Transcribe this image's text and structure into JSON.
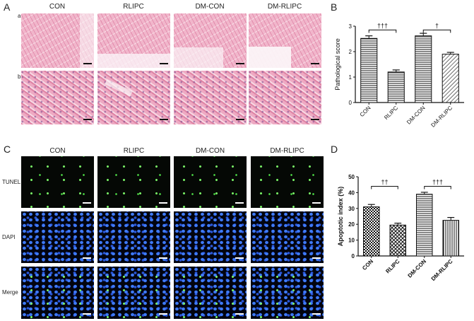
{
  "panels": {
    "a_letter": "A",
    "b_letter": "B",
    "c_letter": "C",
    "d_letter": "D",
    "he_row_a": "a",
    "he_row_b": "b",
    "he_columns": [
      "CON",
      "RLIPC",
      "DM-CON",
      "DM-RLIPC"
    ],
    "fl_columns": [
      "CON",
      "RLIPC",
      "DM-CON",
      "DM-RLIPC"
    ],
    "fl_rows": [
      "TUNEL",
      "DAPI",
      "Merge"
    ]
  },
  "colors": {
    "bar_stroke": "#111111",
    "he_pink": "#f1b6cb",
    "tunel_green": "#52e84a",
    "dapi_blue": "#3f7bff"
  },
  "chart_data": [
    {
      "id": "B",
      "type": "bar",
      "categories": [
        "CON",
        "RLIPC",
        "DM-CON",
        "DM-RLIPC"
      ],
      "values": [
        2.52,
        1.2,
        2.62,
        1.9
      ],
      "errors": [
        0.1,
        0.08,
        0.1,
        0.07
      ],
      "patterns": [
        "hlines",
        "hlines",
        "hlines",
        "diag"
      ],
      "ylabel": "Pathological score",
      "ylim": [
        0,
        3
      ],
      "yticks": [
        0,
        1,
        2,
        3
      ],
      "tick_labels": [
        "0",
        "1",
        "2",
        "3"
      ],
      "annotations": [
        {
          "from": 0,
          "to": 1,
          "text": "†††",
          "y": 2.85
        },
        {
          "from": 2,
          "to": 3,
          "text": "†",
          "y": 2.85
        }
      ],
      "bold_labels": false
    },
    {
      "id": "D",
      "type": "bar",
      "categories": [
        "CON",
        "RLIPC",
        "DM-CON",
        "DM-RLIPC"
      ],
      "values": [
        31,
        19.5,
        39,
        22.5
      ],
      "errors": [
        1.5,
        1.2,
        1.2,
        1.8
      ],
      "patterns": [
        "checker",
        "cross",
        "hlines",
        "vlines"
      ],
      "ylabel": "Apoptotic index (%)",
      "ylim": [
        0,
        50
      ],
      "yticks": [
        0,
        10,
        20,
        30,
        40,
        50
      ],
      "tick_labels": [
        "0",
        "10",
        "20",
        "30",
        "40",
        "50"
      ],
      "annotations": [
        {
          "from": 0,
          "to": 1,
          "text": "††",
          "y": 44
        },
        {
          "from": 2,
          "to": 3,
          "text": "†††",
          "y": 44
        }
      ],
      "bold_labels": true
    }
  ]
}
